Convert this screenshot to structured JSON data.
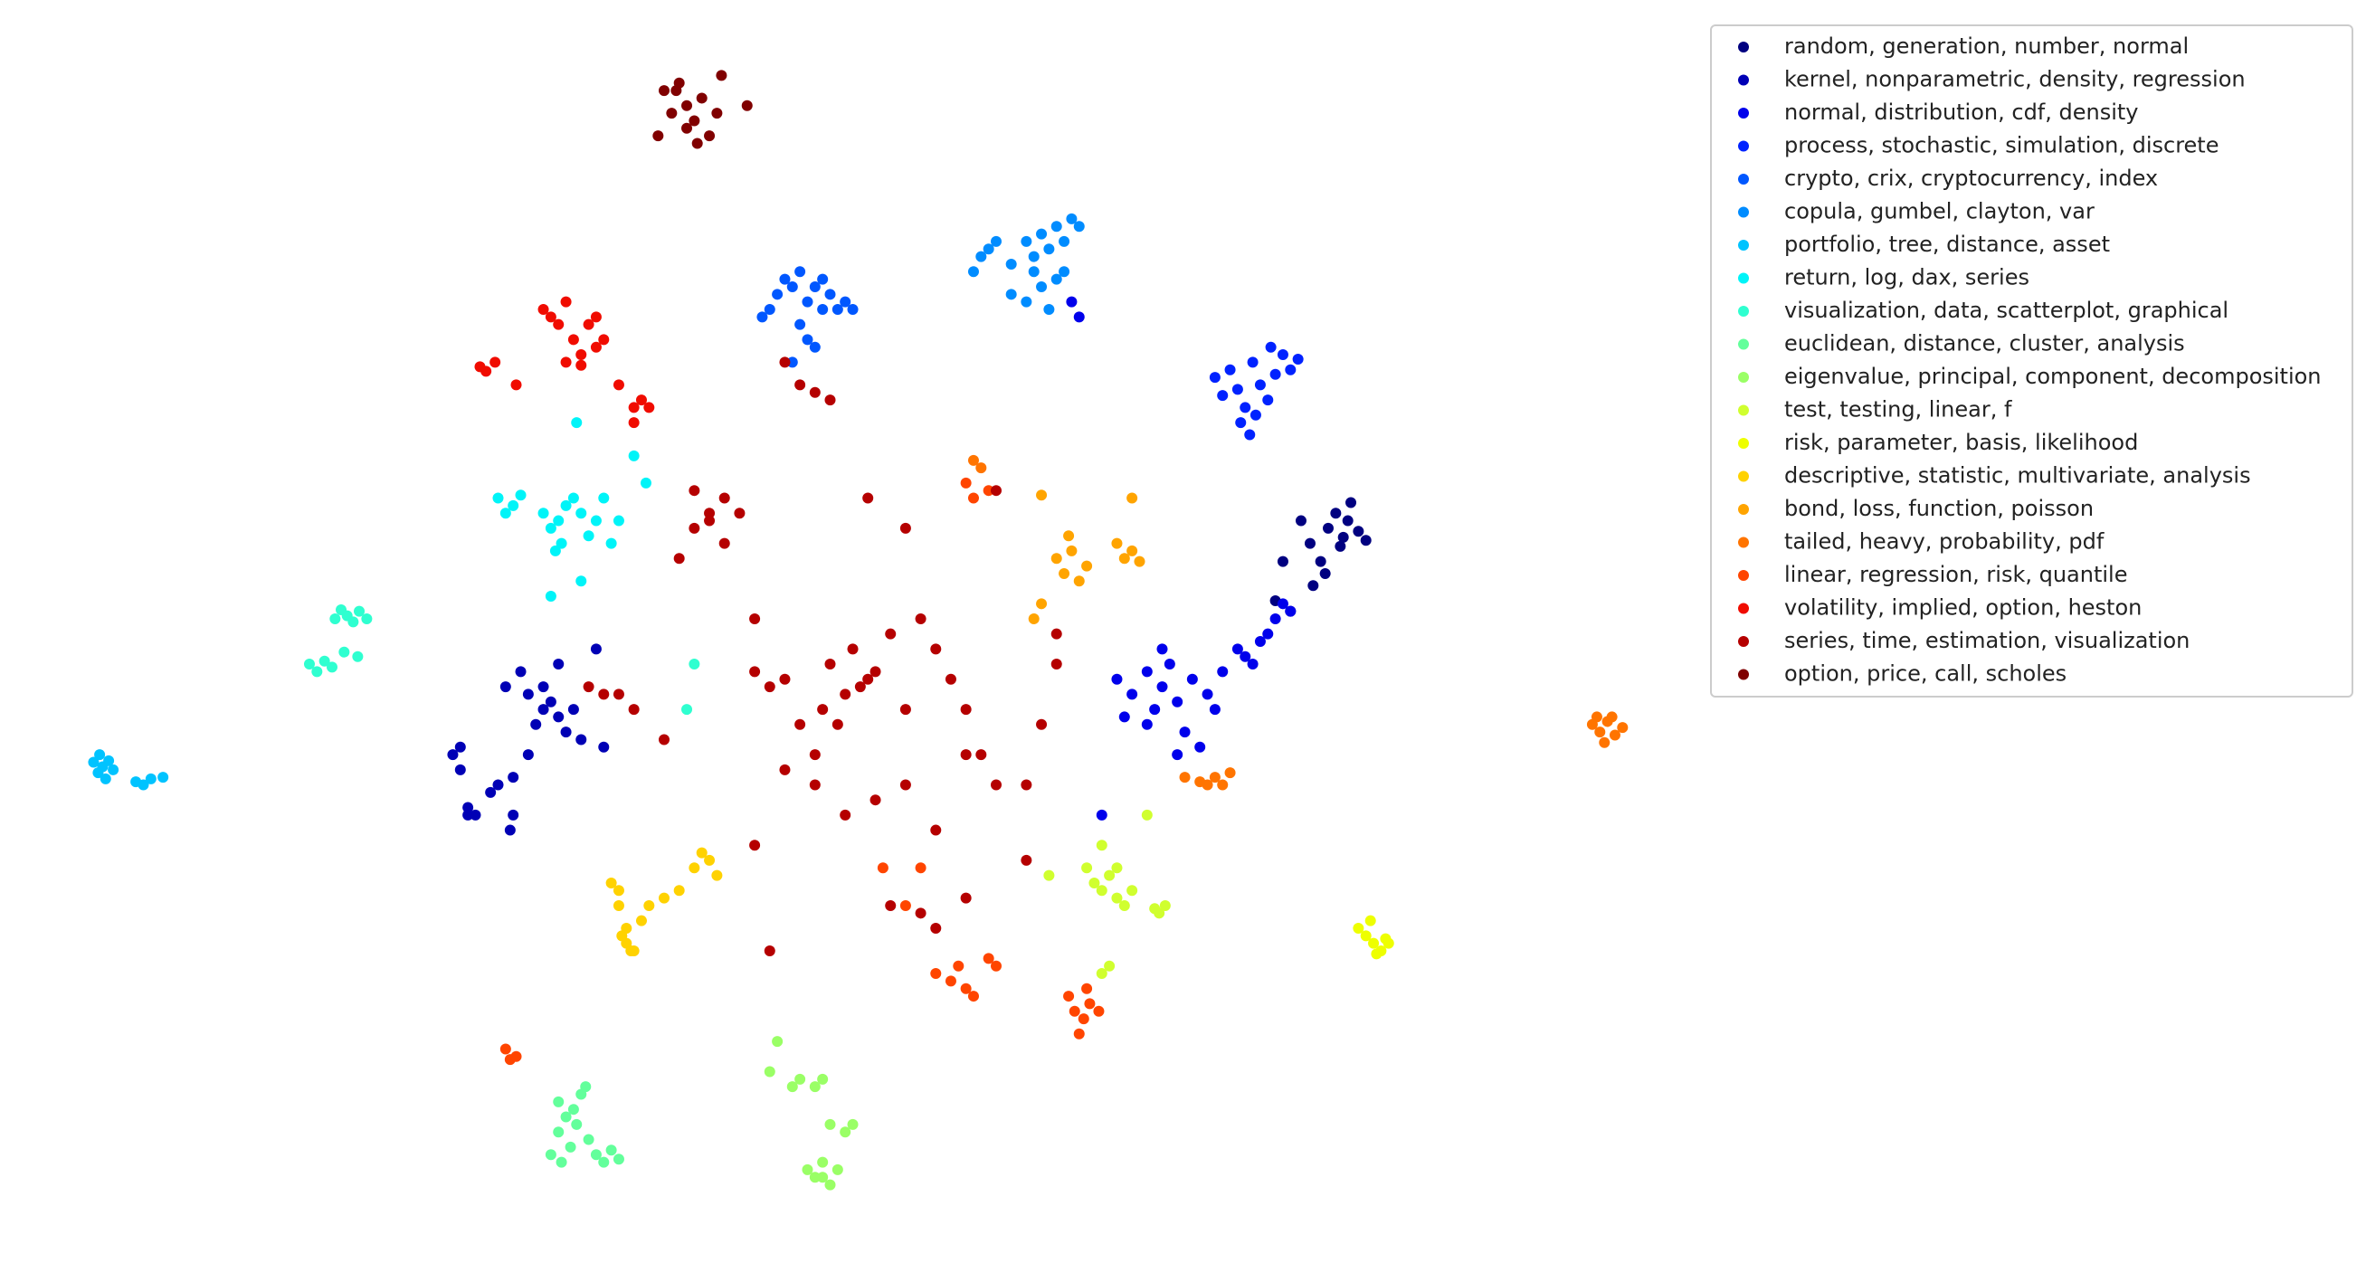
{
  "chart_data": {
    "type": "scatter",
    "legend": "upper right",
    "xlim": [
      0,
      1100
    ],
    "ylim": [
      823,
      0
    ],
    "series": [
      {
        "name": "random, generation, number, normal",
        "color": "#000080",
        "x": [
          862,
          868,
          875,
          880,
          885,
          890,
          895,
          900,
          905,
          878,
          870,
          850,
          845,
          855,
          888,
          893
        ],
        "y": [
          345,
          360,
          372,
          350,
          340,
          356,
          333,
          352,
          358,
          380,
          388,
          372,
          398,
          405,
          362,
          345
        ]
      },
      {
        "name": "kernel, nonparametric, density, regression",
        "color": "#0000b5",
        "x": [
          300,
          305,
          310,
          315,
          330,
          340,
          350,
          355,
          360,
          365,
          370,
          375,
          380,
          385,
          340,
          325,
          335,
          345,
          350,
          360,
          305,
          310,
          370,
          395,
          400,
          338
        ],
        "y": [
          500,
          510,
          535,
          540,
          520,
          515,
          500,
          480,
          470,
          465,
          475,
          485,
          470,
          490,
          540,
          525,
          455,
          445,
          460,
          455,
          495,
          540,
          440,
          430,
          495,
          550
        ]
      },
      {
        "name": "normal, distribution, cdf, density",
        "color": "#0000eb",
        "x": [
          740,
          750,
          760,
          765,
          770,
          775,
          780,
          790,
          800,
          805,
          810,
          760,
          785,
          795,
          770,
          745,
          820,
          830,
          840,
          845,
          850,
          855,
          835,
          825,
          780,
          715,
          710,
          730
        ],
        "y": [
          450,
          460,
          445,
          470,
          455,
          440,
          465,
          450,
          460,
          470,
          445,
          480,
          485,
          495,
          430,
          475,
          430,
          440,
          420,
          410,
          400,
          405,
          425,
          435,
          500,
          210,
          200,
          540
        ]
      },
      {
        "name": "process, stochastic, simulation, discrete",
        "color": "#0022ff",
        "x": [
          805,
          810,
          815,
          820,
          825,
          830,
          835,
          840,
          845,
          850,
          855,
          860,
          822,
          832,
          842,
          828
        ],
        "y": [
          250,
          262,
          245,
          258,
          270,
          240,
          255,
          265,
          248,
          235,
          245,
          238,
          280,
          275,
          230,
          288
        ]
      },
      {
        "name": "crypto, crix, cryptocurrency, index",
        "color": "#0057ff",
        "x": [
          505,
          510,
          515,
          520,
          525,
          530,
          535,
          540,
          545,
          550,
          555,
          560,
          565,
          535,
          540,
          530,
          525,
          545
        ],
        "y": [
          210,
          205,
          195,
          185,
          190,
          180,
          200,
          190,
          205,
          195,
          205,
          200,
          205,
          225,
          230,
          215,
          240,
          185
        ]
      },
      {
        "name": "copula, gumbel, clayton, var",
        "color": "#008cff",
        "x": [
          645,
          650,
          655,
          660,
          670,
          680,
          685,
          690,
          695,
          700,
          705,
          710,
          715,
          700,
          690,
          680,
          695,
          705,
          670,
          685
        ],
        "y": [
          180,
          170,
          165,
          160,
          175,
          160,
          170,
          155,
          165,
          150,
          160,
          145,
          150,
          185,
          190,
          200,
          205,
          180,
          195,
          180
        ]
      },
      {
        "name": "portfolio, tree, distance, asset",
        "color": "#00c3ff",
        "x": [
          62,
          65,
          68,
          72,
          75,
          70,
          66,
          90,
          95,
          100,
          108
        ],
        "y": [
          505,
          512,
          508,
          504,
          510,
          516,
          500,
          518,
          520,
          516,
          515
        ]
      },
      {
        "name": "return, log, dax, series",
        "color": "#00f4f8",
        "x": [
          330,
          335,
          340,
          345,
          360,
          365,
          370,
          375,
          380,
          385,
          372,
          368,
          390,
          395,
          405,
          410,
          420,
          382,
          385,
          365,
          400,
          428
        ],
        "y": [
          330,
          340,
          335,
          328,
          340,
          350,
          345,
          335,
          330,
          340,
          360,
          365,
          355,
          345,
          360,
          345,
          302,
          280,
          385,
          395,
          330,
          320
        ]
      },
      {
        "name": "visualization, data, scatterplot, graphical",
        "color": "#2fffd0",
        "x": [
          222,
          226,
          230,
          234,
          238,
          243,
          205,
          210,
          215,
          220,
          237,
          228,
          460,
          455
        ],
        "y": [
          410,
          404,
          408,
          412,
          405,
          410,
          440,
          445,
          438,
          442,
          435,
          432,
          440,
          470
        ]
      },
      {
        "name": "euclidean, distance, cluster, analysis",
        "color": "#63ff9b",
        "x": [
          370,
          375,
          380,
          385,
          365,
          372,
          378,
          390,
          395,
          400,
          405,
          410,
          388,
          370,
          382
        ],
        "y": [
          730,
          740,
          735,
          725,
          765,
          770,
          760,
          755,
          765,
          770,
          762,
          768,
          720,
          750,
          745
        ]
      },
      {
        "name": "eigenvalue, principal, component, decomposition",
        "color": "#9aff66",
        "x": [
          535,
          540,
          545,
          550,
          555,
          540,
          545,
          530,
          525,
          550,
          560,
          565,
          515,
          510,
          545
        ],
        "y": [
          775,
          780,
          770,
          785,
          775,
          720,
          715,
          715,
          720,
          745,
          750,
          745,
          690,
          710,
          780
        ]
      },
      {
        "name": "test, testing, linear, f",
        "color": "#d0ff2f",
        "x": [
          720,
          725,
          730,
          735,
          740,
          745,
          750,
          730,
          740,
          768,
          772,
          765,
          735,
          730,
          760,
          695
        ],
        "y": [
          575,
          585,
          590,
          580,
          595,
          600,
          590,
          560,
          575,
          605,
          600,
          602,
          640,
          645,
          540,
          580
        ]
      },
      {
        "name": "risk, parameter, basis, likelihood",
        "color": "#eeff00",
        "x": [
          900,
          905,
          910,
          915,
          920,
          912,
          918,
          908
        ],
        "y": [
          615,
          620,
          625,
          630,
          625,
          632,
          622,
          610
        ]
      },
      {
        "name": "descriptive, statistic, multivariate, analysis",
        "color": "#ffd200",
        "x": [
          405,
          410,
          412,
          415,
          420,
          425,
          410,
          430,
          440,
          450,
          460,
          465,
          470,
          475,
          415,
          418
        ],
        "y": [
          585,
          590,
          620,
          625,
          630,
          610,
          600,
          600,
          595,
          590,
          575,
          565,
          570,
          580,
          615,
          630
        ]
      },
      {
        "name": "bond, loss, function, poisson",
        "color": "#ffa400",
        "x": [
          700,
          705,
          710,
          715,
          720,
          740,
          745,
          750,
          755,
          690,
          685,
          750,
          690,
          708
        ],
        "y": [
          370,
          380,
          365,
          385,
          375,
          360,
          370,
          365,
          372,
          400,
          410,
          330,
          328,
          355
        ]
      },
      {
        "name": "tailed, heavy, probability, pdf",
        "color": "#ff7400",
        "x": [
          1055,
          1060,
          1065,
          1070,
          1075,
          1063,
          1058,
          1068,
          785,
          795,
          800,
          805,
          810,
          815,
          650,
          645
        ],
        "y": [
          480,
          485,
          478,
          487,
          482,
          492,
          475,
          475,
          515,
          518,
          520,
          515,
          520,
          512,
          310,
          305
        ]
      },
      {
        "name": "linear, regression, risk, quantile",
        "color": "#ff4500",
        "x": [
          708,
          712,
          718,
          722,
          728,
          715,
          720,
          620,
          630,
          635,
          640,
          645,
          655,
          660,
          335,
          338,
          342,
          640,
          645,
          655,
          600,
          610,
          585
        ],
        "y": [
          660,
          670,
          675,
          665,
          670,
          685,
          655,
          645,
          650,
          640,
          655,
          660,
          635,
          640,
          695,
          702,
          700,
          320,
          330,
          325,
          600,
          575,
          575
        ]
      },
      {
        "name": "volatility, implied, option, heston",
        "color": "#f00c00",
        "x": [
          360,
          365,
          370,
          375,
          380,
          385,
          390,
          395,
          400,
          375,
          385,
          395,
          318,
          322,
          328,
          410,
          420,
          425,
          430,
          420,
          342
        ],
        "y": [
          205,
          210,
          215,
          200,
          225,
          235,
          215,
          210,
          225,
          240,
          242,
          230,
          243,
          246,
          240,
          255,
          270,
          265,
          270,
          280,
          255
        ]
      },
      {
        "name": "series, time, estimation, visualization",
        "color": "#b50000",
        "x": [
          570,
          560,
          575,
          580,
          550,
          545,
          555,
          565,
          590,
          600,
          520,
          510,
          500,
          530,
          540,
          610,
          620,
          630,
          640,
          650,
          480,
          490,
          470,
          460,
          450,
          440,
          420,
          410,
          400,
          390,
          600,
          580,
          560,
          540,
          520,
          500,
          620,
          640,
          660,
          680,
          690,
          700,
          700,
          470,
          460,
          480,
          500,
          540,
          520,
          530,
          550,
          510,
          575,
          590,
          620,
          610,
          640,
          660,
          680,
          600
        ],
        "y": [
          455,
          460,
          450,
          445,
          440,
          470,
          480,
          430,
          420,
          470,
          450,
          455,
          445,
          480,
          500,
          410,
          430,
          450,
          470,
          500,
          330,
          340,
          345,
          350,
          370,
          490,
          470,
          460,
          460,
          455,
          520,
          530,
          540,
          520,
          510,
          560,
          550,
          500,
          520,
          520,
          480,
          420,
          440,
          340,
          325,
          360,
          410,
          260,
          240,
          255,
          265,
          630,
          330,
          600,
          615,
          605,
          595,
          325,
          570,
          350
        ]
      },
      {
        "name": "option, price, call, scholes",
        "color": "#800000",
        "x": [
          440,
          445,
          450,
          455,
          460,
          465,
          470,
          475,
          455,
          462,
          478,
          495,
          436,
          448
        ],
        "y": [
          60,
          75,
          55,
          70,
          80,
          65,
          90,
          75,
          85,
          95,
          50,
          70,
          90,
          60
        ]
      }
    ]
  }
}
